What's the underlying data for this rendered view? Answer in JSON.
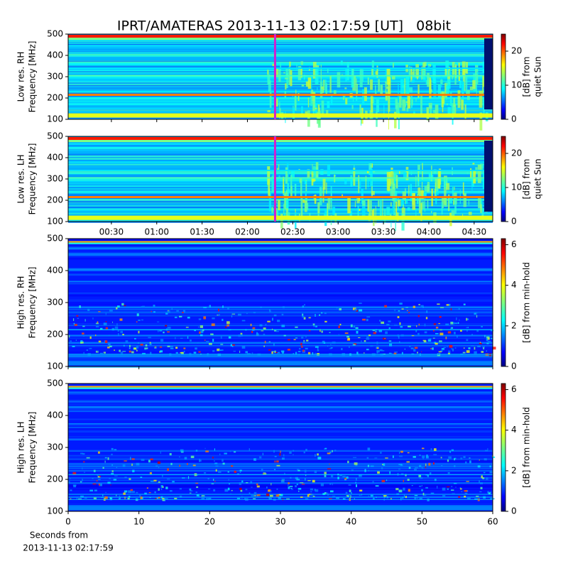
{
  "title": "IPRT/AMATERAS 2013-11-13 02:17:59 [UT]   08bit",
  "xlabel": [
    "Seconds from",
    "2013-11-13 02:17:59"
  ],
  "chart_data": [
    {
      "type": "spectrogram",
      "ylabel": [
        "Low res. RH",
        "Frequency [MHz]"
      ],
      "ylim": [
        100,
        500
      ],
      "yticks": [
        100,
        200,
        300,
        400,
        500
      ],
      "xlim": [
        1.4,
        282.3
      ],
      "marker": 138.3,
      "marker_color": "#d020d0",
      "cbar_label": [
        "[dB] from",
        "quiet Sun"
      ],
      "clim": [
        0,
        25
      ],
      "cticks": [
        0,
        10,
        20
      ]
    },
    {
      "type": "spectrogram",
      "ylabel": [
        "Low res. LH",
        "Frequency [MHz]"
      ],
      "ylim": [
        100,
        500
      ],
      "yticks": [
        100,
        200,
        300,
        400,
        500
      ],
      "xlim": [
        1.4,
        282.3
      ],
      "marker": 138.3,
      "marker_color": "#d020d0",
      "xticks": [
        {
          "value": 30,
          "label": "00:30"
        },
        {
          "value": 60,
          "label": "01:00"
        },
        {
          "value": 90,
          "label": "01:30"
        },
        {
          "value": 120,
          "label": "02:00"
        },
        {
          "value": 150,
          "label": "02:30"
        },
        {
          "value": 180,
          "label": "03:00"
        },
        {
          "value": 210,
          "label": "03:30"
        },
        {
          "value": 240,
          "label": "04:00"
        },
        {
          "value": 270,
          "label": "04:30"
        }
      ],
      "cbar_label": [
        "[dB] from",
        "quiet Sun"
      ],
      "clim": [
        0,
        25
      ],
      "cticks": [
        0,
        10,
        20
      ]
    },
    {
      "type": "spectrogram",
      "ylabel": [
        "High res. RH",
        "Frequency [MHz]"
      ],
      "ylim": [
        100,
        500
      ],
      "yticks": [
        100,
        200,
        300,
        400,
        500
      ],
      "xlim": [
        0,
        60
      ],
      "cbar_label": [
        "[dB] from min-hold"
      ],
      "clim": [
        0,
        6.3
      ],
      "cticks": [
        0,
        2,
        4,
        6
      ]
    },
    {
      "type": "spectrogram",
      "ylabel": [
        "High res. LH",
        "Frequency [MHz]"
      ],
      "ylim": [
        100,
        500
      ],
      "yticks": [
        100,
        200,
        300,
        400,
        500
      ],
      "xlim": [
        0,
        60
      ],
      "xticks": [
        0,
        10,
        20,
        30,
        40,
        50,
        60
      ],
      "cbar_label": [
        "[dB] from min-hold"
      ],
      "clim": [
        0,
        6.3
      ],
      "cticks": [
        0,
        2,
        4,
        6
      ]
    }
  ]
}
